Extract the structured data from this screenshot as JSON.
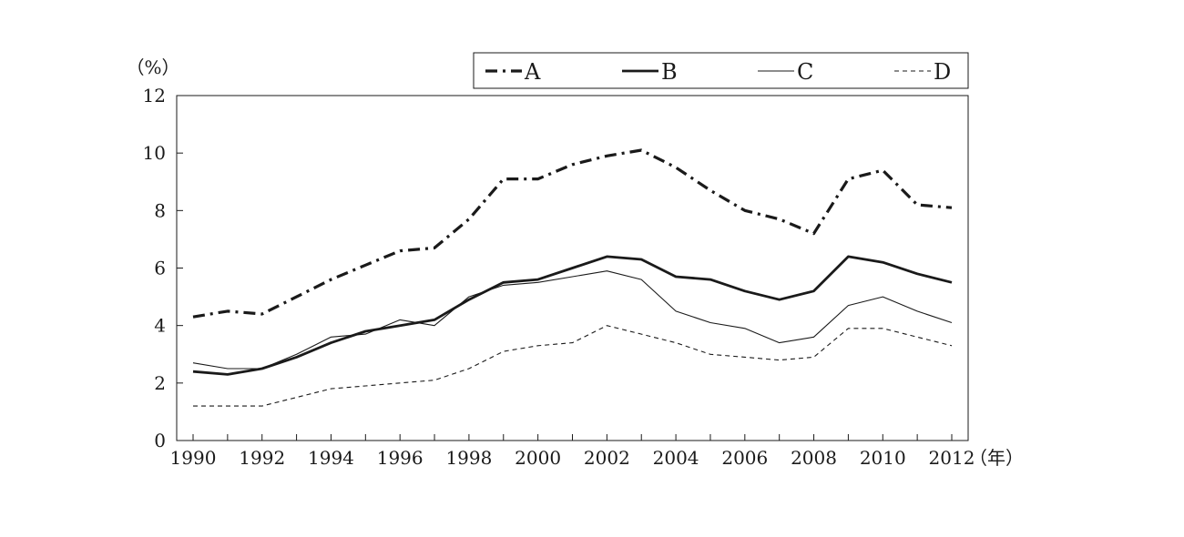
{
  "chart_data": {
    "type": "line",
    "title": "",
    "ylabel": "（%）",
    "xlabel": "（年）",
    "ylim": [
      0,
      12
    ],
    "yticks": [
      0,
      2,
      4,
      6,
      8,
      10,
      12
    ],
    "xlim": [
      1990,
      2012
    ],
    "xtick_labels": [
      "1990",
      "1992",
      "1994",
      "1996",
      "1998",
      "2000",
      "2002",
      "2004",
      "2006",
      "2008",
      "2010",
      "2012"
    ],
    "grid": false,
    "legend_position": "top-right",
    "x": [
      1990,
      1991,
      1992,
      1993,
      1994,
      1995,
      1996,
      1997,
      1998,
      1999,
      2000,
      2001,
      2002,
      2003,
      2004,
      2005,
      2006,
      2007,
      2008,
      2009,
      2010,
      2011,
      2012
    ],
    "series": [
      {
        "name": "A",
        "style": "dash-dot-thick",
        "color": "#1a1a1a",
        "values": [
          4.3,
          4.5,
          4.4,
          5.0,
          5.6,
          6.1,
          6.6,
          6.7,
          7.7,
          9.1,
          9.1,
          9.6,
          9.9,
          10.1,
          9.5,
          8.7,
          8.0,
          7.7,
          7.2,
          9.1,
          9.4,
          8.2,
          8.1
        ]
      },
      {
        "name": "B",
        "style": "solid-thick",
        "color": "#1a1a1a",
        "values": [
          2.4,
          2.3,
          2.5,
          2.9,
          3.4,
          3.8,
          4.0,
          4.2,
          4.9,
          5.5,
          5.6,
          6.0,
          6.4,
          6.3,
          5.7,
          5.6,
          5.2,
          4.9,
          5.2,
          6.4,
          6.2,
          5.8,
          5.5
        ]
      },
      {
        "name": "C",
        "style": "solid-thin",
        "color": "#1a1a1a",
        "values": [
          2.7,
          2.5,
          2.5,
          3.0,
          3.6,
          3.7,
          4.2,
          4.0,
          5.0,
          5.4,
          5.5,
          5.7,
          5.9,
          5.6,
          4.5,
          4.1,
          3.9,
          3.4,
          3.6,
          4.7,
          5.0,
          4.5,
          4.1
        ]
      },
      {
        "name": "D",
        "style": "dashed-thin",
        "color": "#1a1a1a",
        "values": [
          1.2,
          1.2,
          1.2,
          1.5,
          1.8,
          1.9,
          2.0,
          2.1,
          2.5,
          3.1,
          3.3,
          3.4,
          4.0,
          3.7,
          3.4,
          3.0,
          2.9,
          2.8,
          2.9,
          3.9,
          3.9,
          3.6,
          3.3
        ]
      }
    ]
  }
}
